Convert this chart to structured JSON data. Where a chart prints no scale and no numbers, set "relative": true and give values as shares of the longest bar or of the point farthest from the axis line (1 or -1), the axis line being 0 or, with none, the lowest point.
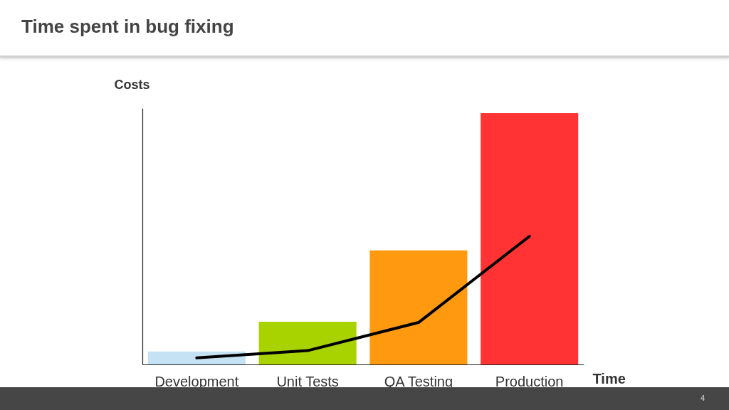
{
  "chart_data": {
    "type": "bar",
    "title": "Time spent in bug fixing",
    "xlabel": "Time",
    "ylabel": "Costs",
    "relative": true,
    "categories": [
      "Development",
      "Unit Tests",
      "QA Testing",
      "Production"
    ],
    "series": [
      {
        "colors": [
          "#c5e2f5",
          "#a8d200",
          "#ff9910",
          "#ff3333"
        ],
        "values": [
          0.052,
          0.17,
          0.454,
          1
        ]
      },
      {
        "type": "line",
        "color": "#000000",
        "values": [
          0.026,
          0.055,
          0.167,
          0.51
        ]
      }
    ],
    "annotations": [
      "4"
    ]
  }
}
